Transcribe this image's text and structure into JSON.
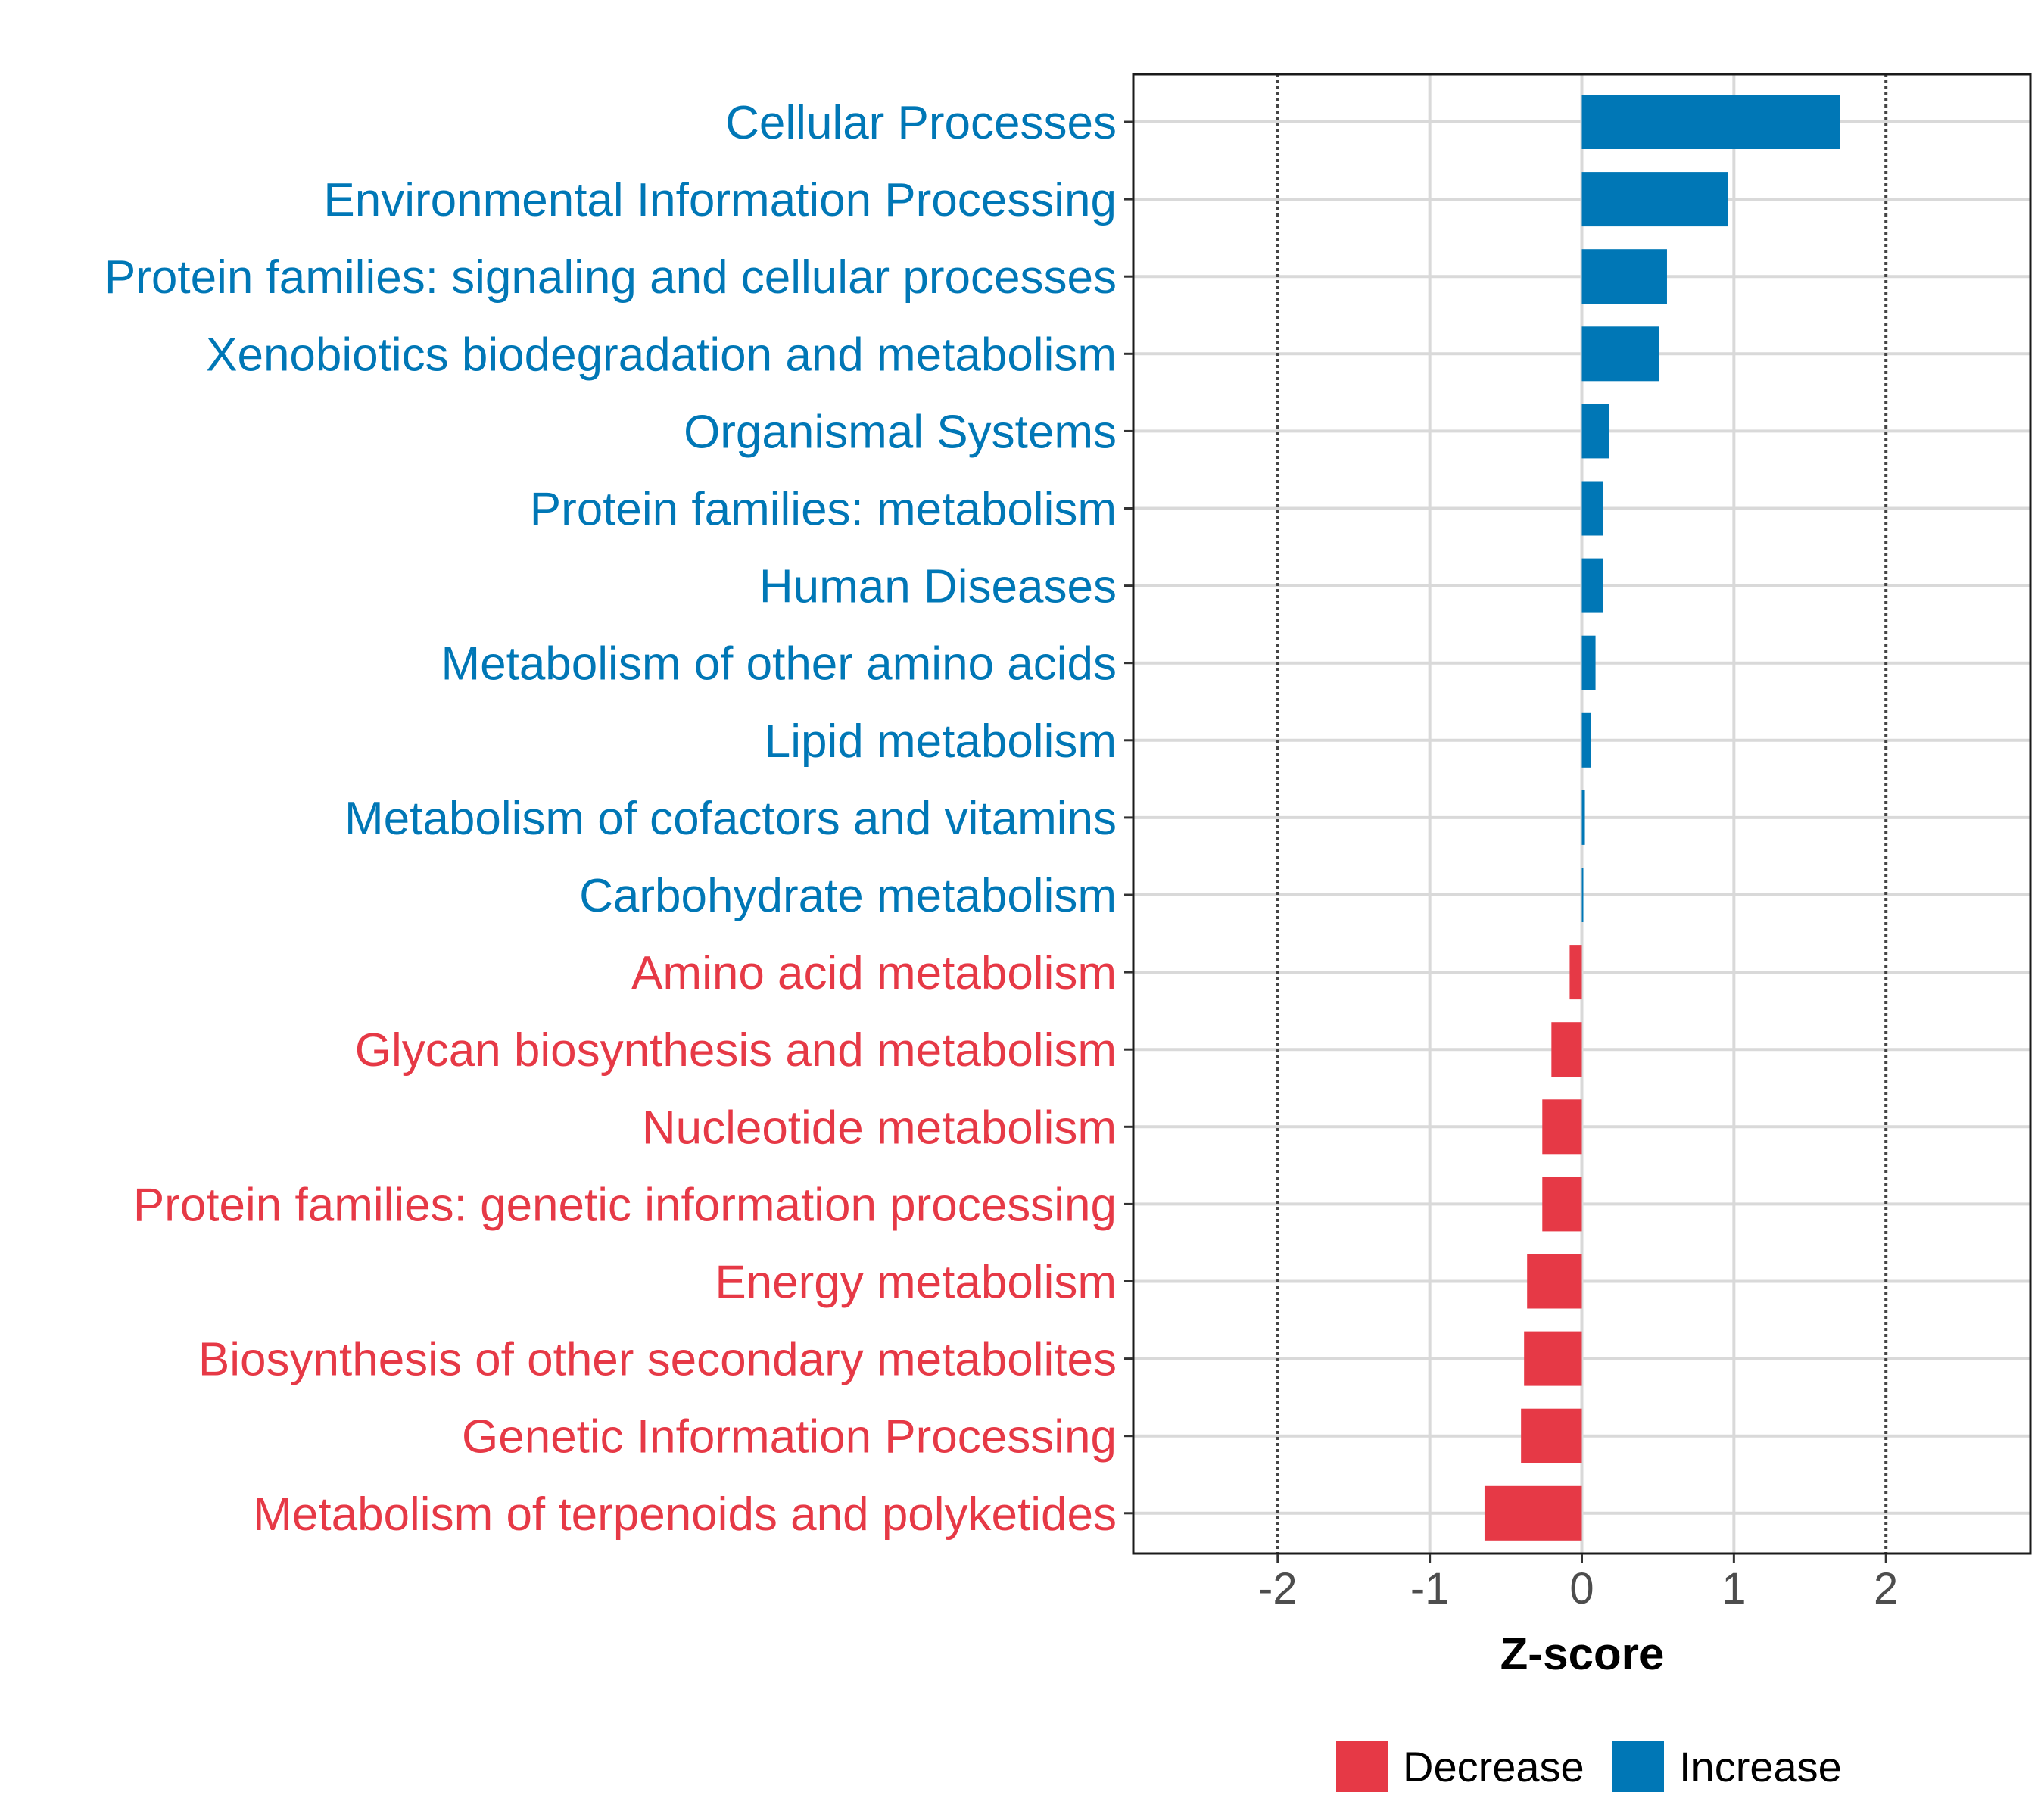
{
  "chart_data": {
    "type": "bar",
    "orientation": "horizontal",
    "title": "",
    "xlabel": "Z-score",
    "ylabel": "",
    "xlim": [
      -2.95,
      2.95
    ],
    "xticks": [
      -2,
      -1,
      0,
      1,
      2
    ],
    "xtick_labels": [
      "-2",
      "-1",
      "0",
      "1",
      "2"
    ],
    "reference_lines": [
      -2,
      2
    ],
    "grid": true,
    "legend_position": "bottom",
    "legend": [
      {
        "label": "Decrease",
        "color": "#E63946"
      },
      {
        "label": "Increase",
        "color": "#0077B6"
      }
    ],
    "categories": [
      "Cellular Processes",
      "Environmental Information Processing",
      "Protein families: signaling and cellular processes",
      "Xenobiotics biodegradation and metabolism",
      "Organismal Systems",
      "Protein families: metabolism",
      "Human Diseases",
      "Metabolism of other amino acids",
      "Lipid metabolism",
      "Metabolism of cofactors and vitamins",
      "Carbohydrate metabolism",
      "Amino acid metabolism",
      "Glycan biosynthesis and metabolism",
      "Nucleotide metabolism",
      "Protein families: genetic information processing",
      "Energy metabolism",
      "Biosynthesis of other secondary metabolites",
      "Genetic Information Processing",
      "Metabolism of terpenoids and polyketides"
    ],
    "values": [
      1.7,
      0.96,
      0.56,
      0.51,
      0.18,
      0.14,
      0.14,
      0.09,
      0.06,
      0.02,
      0.01,
      -0.08,
      -0.2,
      -0.26,
      -0.26,
      -0.36,
      -0.38,
      -0.4,
      -0.64
    ],
    "groups": [
      "Increase",
      "Increase",
      "Increase",
      "Increase",
      "Increase",
      "Increase",
      "Increase",
      "Increase",
      "Increase",
      "Increase",
      "Increase",
      "Decrease",
      "Decrease",
      "Decrease",
      "Decrease",
      "Decrease",
      "Decrease",
      "Decrease",
      "Decrease"
    ]
  }
}
